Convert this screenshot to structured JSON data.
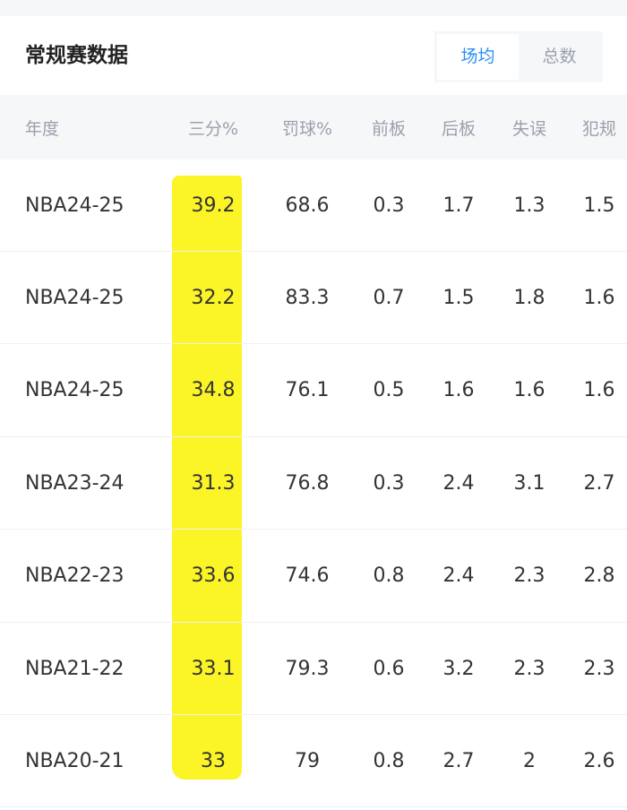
{
  "header": {
    "title": "常规赛数据",
    "toggle": [
      {
        "label": "场均",
        "active": true
      },
      {
        "label": "总数",
        "active": false
      }
    ]
  },
  "colors": {
    "accent": "#2b8ff5",
    "highlight": "#fbf31a"
  },
  "table": {
    "columns": [
      "年度",
      "三分%",
      "罚球%",
      "前板",
      "后板",
      "失误",
      "犯规"
    ],
    "rows": [
      [
        "NBA24-25",
        "39.2",
        "68.6",
        "0.3",
        "1.7",
        "1.3",
        "1.5"
      ],
      [
        "NBA24-25",
        "32.2",
        "83.3",
        "0.7",
        "1.5",
        "1.8",
        "1.6"
      ],
      [
        "NBA24-25",
        "34.8",
        "76.1",
        "0.5",
        "1.6",
        "1.6",
        "1.6"
      ],
      [
        "NBA23-24",
        "31.3",
        "76.8",
        "0.3",
        "2.4",
        "3.1",
        "2.7"
      ],
      [
        "NBA22-23",
        "33.6",
        "74.6",
        "0.8",
        "2.4",
        "2.3",
        "2.8"
      ],
      [
        "NBA21-22",
        "33.1",
        "79.3",
        "0.6",
        "3.2",
        "2.3",
        "2.3"
      ],
      [
        "NBA20-21",
        "33",
        "79",
        "0.8",
        "2.7",
        "2",
        "2.6"
      ]
    ]
  }
}
